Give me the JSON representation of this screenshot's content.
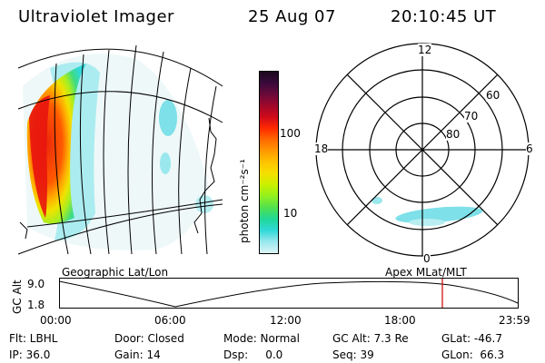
{
  "header": {
    "instrument": "Ultraviolet Imager",
    "date": "25 Aug 07",
    "time": "20:10:45 UT"
  },
  "colorbar": {
    "unit_label": "photon cm⁻²s⁻¹",
    "ticks": [
      "100",
      "10"
    ],
    "colors": [
      "#1a0a1e",
      "#3a0a3a",
      "#6a0a3a",
      "#a0082a",
      "#d00a1a",
      "#ff2a00",
      "#ff6a00",
      "#ff9a00",
      "#ffc400",
      "#f4e000",
      "#c8f000",
      "#90f020",
      "#50e050",
      "#20d898",
      "#30d8d8",
      "#9ae8ee",
      "#dcf4f6"
    ]
  },
  "polar_plot": {
    "hour_labels": [
      "12",
      "18",
      "6",
      "0"
    ],
    "lat_labels": [
      "60",
      "70",
      "80"
    ]
  },
  "timeline": {
    "left_label": "Geographic Lat/Lon",
    "right_label": "Apex MLat/MLT",
    "axis_title": "GC Alt",
    "y_max": "9.0",
    "y_min": "1.8",
    "x_ticks": [
      "00:00",
      "06:00",
      "12:00",
      "18:00",
      "23:59"
    ],
    "current_marker_color": "#cc0000"
  },
  "info": {
    "row1": [
      {
        "label": "Flt: LBHL"
      },
      {
        "label": "Door: Closed"
      },
      {
        "label": "Mode: Normal"
      },
      {
        "label": "GC Alt: 7.3 Re"
      },
      {
        "label": "GLat: -46.7"
      }
    ],
    "row2": [
      {
        "label": "IP: 36.0"
      },
      {
        "label": "Gain: 14"
      },
      {
        "label": "Dsp:     0.0"
      },
      {
        "label": "Seq: 39"
      },
      {
        "label": "GLon:  66.3"
      }
    ]
  }
}
